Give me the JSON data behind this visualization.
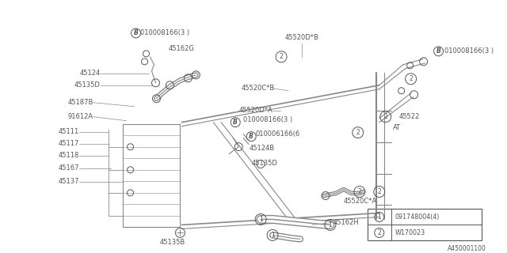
{
  "bg_color": "#ffffff",
  "lc": "#888888",
  "lc_dark": "#555555",
  "figsize": [
    6.4,
    3.2
  ],
  "dpi": 100,
  "title_id": "A450001100",
  "legend_items": [
    {
      "sym": "1",
      "text": "091748004(4)"
    },
    {
      "sym": "2",
      "text": "W170023"
    }
  ]
}
